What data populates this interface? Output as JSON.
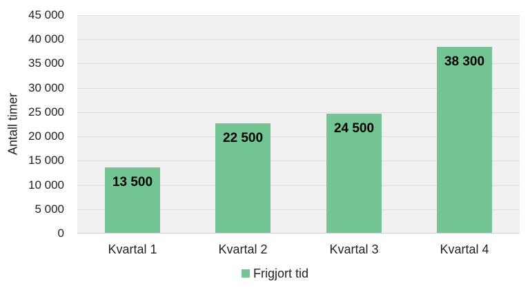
{
  "chart_data": {
    "type": "bar",
    "title": "",
    "xlabel": "",
    "ylabel": "Antall timer",
    "categories": [
      "Kvartal 1",
      "Kvartal 2",
      "Kvartal 3",
      "Kvartal 4"
    ],
    "series": [
      {
        "name": "Frigjort tid",
        "values": [
          13500,
          22500,
          24500,
          38300
        ]
      }
    ],
    "value_labels": [
      "13 500",
      "22 500",
      "24 500",
      "38 300"
    ],
    "ylim": [
      0,
      45000
    ],
    "ytick_step": 5000,
    "ytick_labels": [
      "0",
      "5 000",
      "10 000",
      "15 000",
      "20 000",
      "25 000",
      "30 000",
      "35 000",
      "40 000",
      "45 000"
    ],
    "grid": true,
    "legend_position": "bottom-center",
    "colors": {
      "bar": "#73C593",
      "plot_bg": "#F1F1F1",
      "gridline": "#DEDEDE",
      "axis_line": "#D2D2D2",
      "text": "#212121",
      "value_text": "#000000"
    }
  },
  "legend": {
    "label": "Frigjort tid"
  },
  "y_axis": {
    "title": "Antall timer"
  }
}
